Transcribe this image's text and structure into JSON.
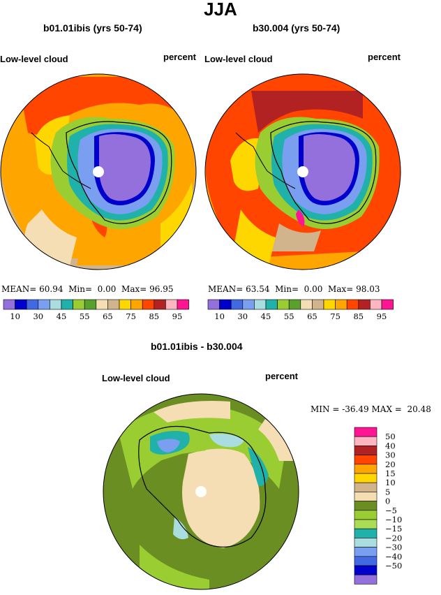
{
  "season": "JJA",
  "panels": [
    {
      "case": "b01.01ibis (yrs 50-74)",
      "variable": "Low-level cloud",
      "units": "percent",
      "mean_label": "MEAN=",
      "mean": "60.94",
      "min_label": "Min=",
      "min": "0.00",
      "max_label": "Max=",
      "max": "96.95"
    },
    {
      "case": "b30.004 (yrs 50-74)",
      "variable": "Low-level cloud",
      "units": "percent",
      "mean_label": "MEAN=",
      "mean": "63.54",
      "min_label": "Min=",
      "min": "0.00",
      "max_label": "Max=",
      "max": "98.03"
    }
  ],
  "colorbar": {
    "colors": [
      "#9370db",
      "#0000cd",
      "#4169e1",
      "#7b9ff0",
      "#aadde0",
      "#20b2aa",
      "#9acd32",
      "#5aa02c",
      "#f5deb3",
      "#d2b48c",
      "#ffd700",
      "#ffa500",
      "#ff4500",
      "#b22222",
      "#ffb6c1",
      "#ff1493"
    ],
    "tick_labels": [
      "10",
      "30",
      "45",
      "55",
      "65",
      "75",
      "85",
      "95"
    ]
  },
  "difference": {
    "title": "b01.01ibis - b30.004",
    "variable": "Low-level cloud",
    "units": "percent",
    "min_label": "MIN =",
    "min": "-36.49",
    "max_label": "MAX =",
    "max": "20.48",
    "legend_colors": [
      "#ff1493",
      "#ffb6c1",
      "#b22222",
      "#ff4500",
      "#ffa500",
      "#ffd700",
      "#d2b48c",
      "#f5deb3",
      "#6b8e23",
      "#9acd32",
      "#aadd55",
      "#20b2aa",
      "#aadde0",
      "#7b9ff0",
      "#4169e1",
      "#0000cd",
      "#9370db"
    ],
    "legend_labels": [
      "50",
      "40",
      "30",
      "20",
      "15",
      "10",
      "5",
      "0",
      "−5",
      "−10",
      "−15",
      "−20",
      "−30",
      "−40",
      "−50"
    ]
  }
}
